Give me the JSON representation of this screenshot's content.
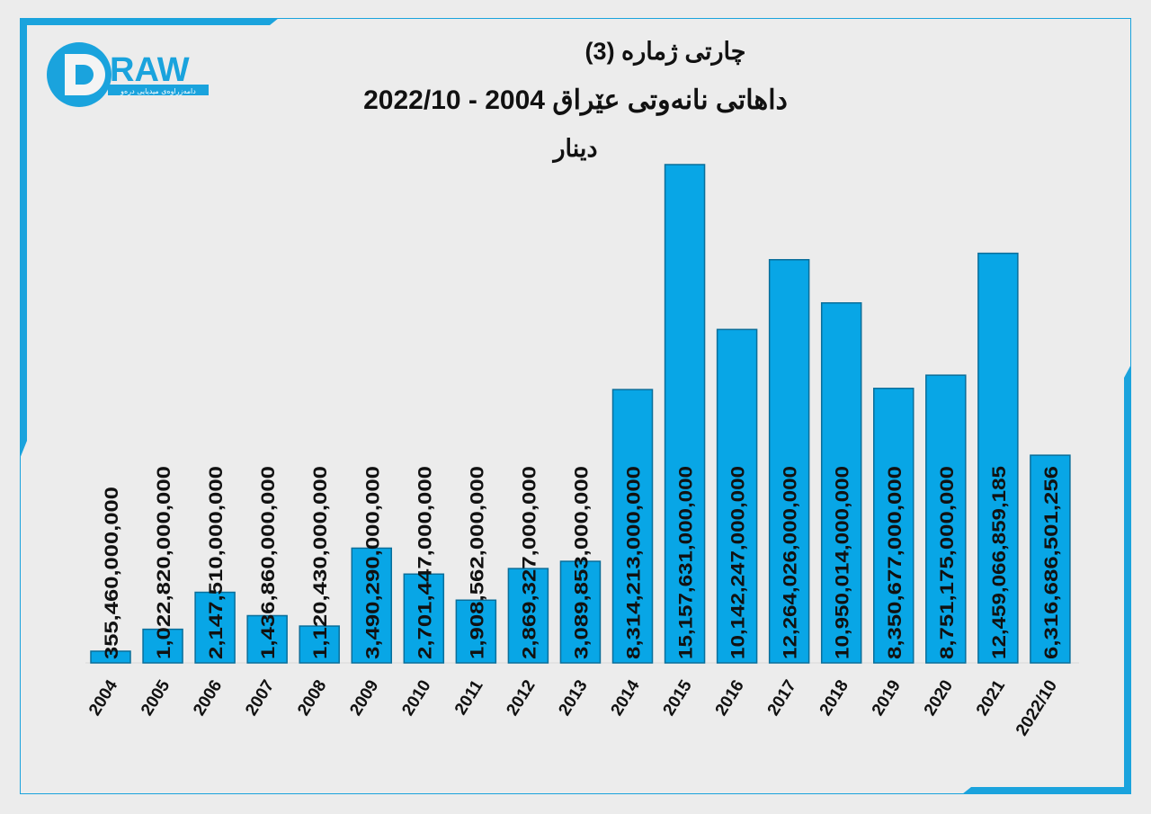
{
  "logo": {
    "text": "DRAW",
    "subtitle": "دامەزراوەی میدیایی درەو"
  },
  "colors": {
    "bar": "#08a6e6",
    "bar_edge": "#0a6e9a",
    "frame": "#1aa3dd",
    "background": "#ececec"
  },
  "chart_data": {
    "type": "bar",
    "title": "چارتی ژمارە (3)",
    "subtitle": "داهاتی نانەوتی عێراق  2004 - 2022/10",
    "unit": "دینار",
    "xlabel": "",
    "ylabel": "",
    "categories": [
      "2004",
      "2005",
      "2006",
      "2007",
      "2008",
      "2009",
      "2010",
      "2011",
      "2012",
      "2013",
      "2014",
      "2015",
      "2016",
      "2017",
      "2018",
      "2019",
      "2020",
      "2021",
      "2022/10"
    ],
    "values": [
      355460000000,
      1022820000000,
      2147510000000,
      1436860000000,
      1120430000000,
      3490290000000,
      2701447000000,
      1908562000000,
      2869327000000,
      3089853000000,
      8314213000000,
      15157631000000,
      10142247000000,
      12264026000000,
      10950014000000,
      8350677000000,
      8751175000000,
      12459066859185,
      6316686501256
    ],
    "value_labels": [
      "355,460,000,000",
      "1,022,820,000,000",
      "2,147,510,000,000",
      "1,436,860,000,000",
      "1,120,430,000,000",
      "3,490,290,000,000",
      "2,701,447,000,000",
      "1,908,562,000,000",
      "2,869,327,000,000",
      "3,089,853,000,000",
      "8,314,213,000,000",
      "15,157,631,000,000",
      "10,142,247,000,000",
      "12,264,026,000,000",
      "10,950,014,000,000",
      "8,350,677,000,000",
      "8,751,175,000,000",
      "12,459,066,859,185",
      "6,316,686,501,256"
    ],
    "ylim": [
      0,
      15157631000000
    ],
    "grid": false,
    "legend": "none"
  }
}
